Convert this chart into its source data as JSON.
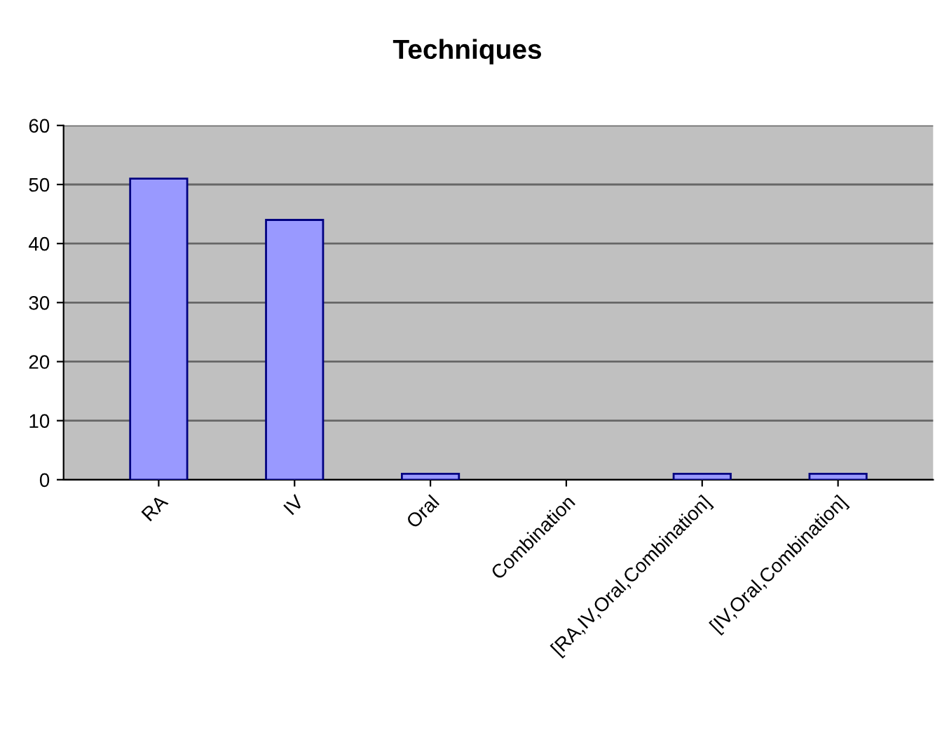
{
  "chart_data": {
    "type": "bar",
    "title": "Techniques",
    "categories": [
      "RA",
      "IV",
      "Oral",
      "Combination",
      "[RA,IV,Oral,Combination]",
      "[IV,Oral,Combination]"
    ],
    "values": [
      51,
      44,
      1,
      0,
      1,
      1
    ],
    "color": "#9999ff",
    "ylim": [
      0,
      60
    ],
    "yticks": [
      0,
      10,
      20,
      30,
      40,
      50,
      60
    ],
    "grid": "y",
    "legend": false
  }
}
